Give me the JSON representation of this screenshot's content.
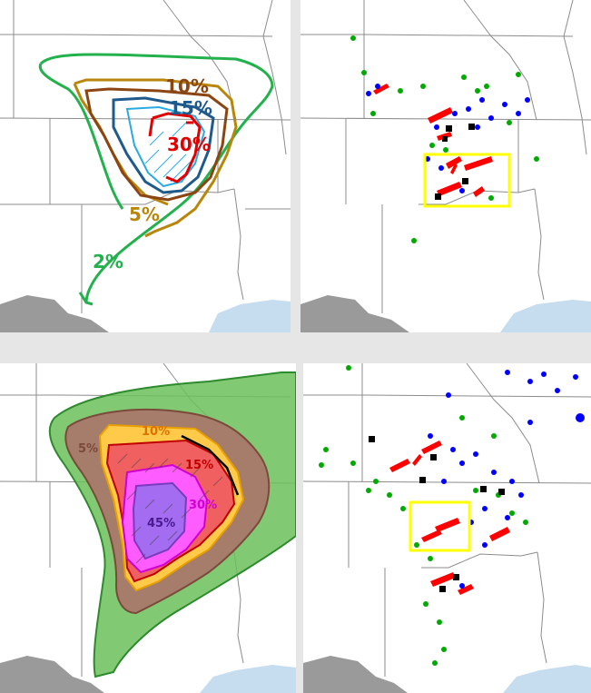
{
  "colors": {
    "background": "#ffffff",
    "state_border": "#8c8c8c",
    "county_line": "#b4b4b4",
    "water": "#c6dcef",
    "mexico": "#9a9a9a",
    "outlook_2": "#22b14c",
    "outlook_5": "#b8860b",
    "outlook_10": "#8b4513",
    "outlook_15": "#1f5a8c",
    "outlook_15b": "#29abe2",
    "outlook_30": "#e00000",
    "fill_2": "#6cbf5a",
    "fill_5": "#a8786a",
    "fill_10": "#ffc94a",
    "fill_15": "#f06060",
    "fill_30": "#ff5cff",
    "fill_45": "#a46cf0",
    "highlight_box": "#ffff00",
    "report_tornado": "#ff0000",
    "report_wind": "#0000ff",
    "report_hail": "#00aa00",
    "report_sig": "#000000"
  },
  "panels": {
    "top_left": {
      "labels": [
        "10%",
        "15%",
        "30%",
        "5%",
        "2%"
      ]
    },
    "bottom_left": {
      "labels": [
        "5%",
        "10%",
        "15%",
        "30%",
        "45%"
      ]
    }
  }
}
